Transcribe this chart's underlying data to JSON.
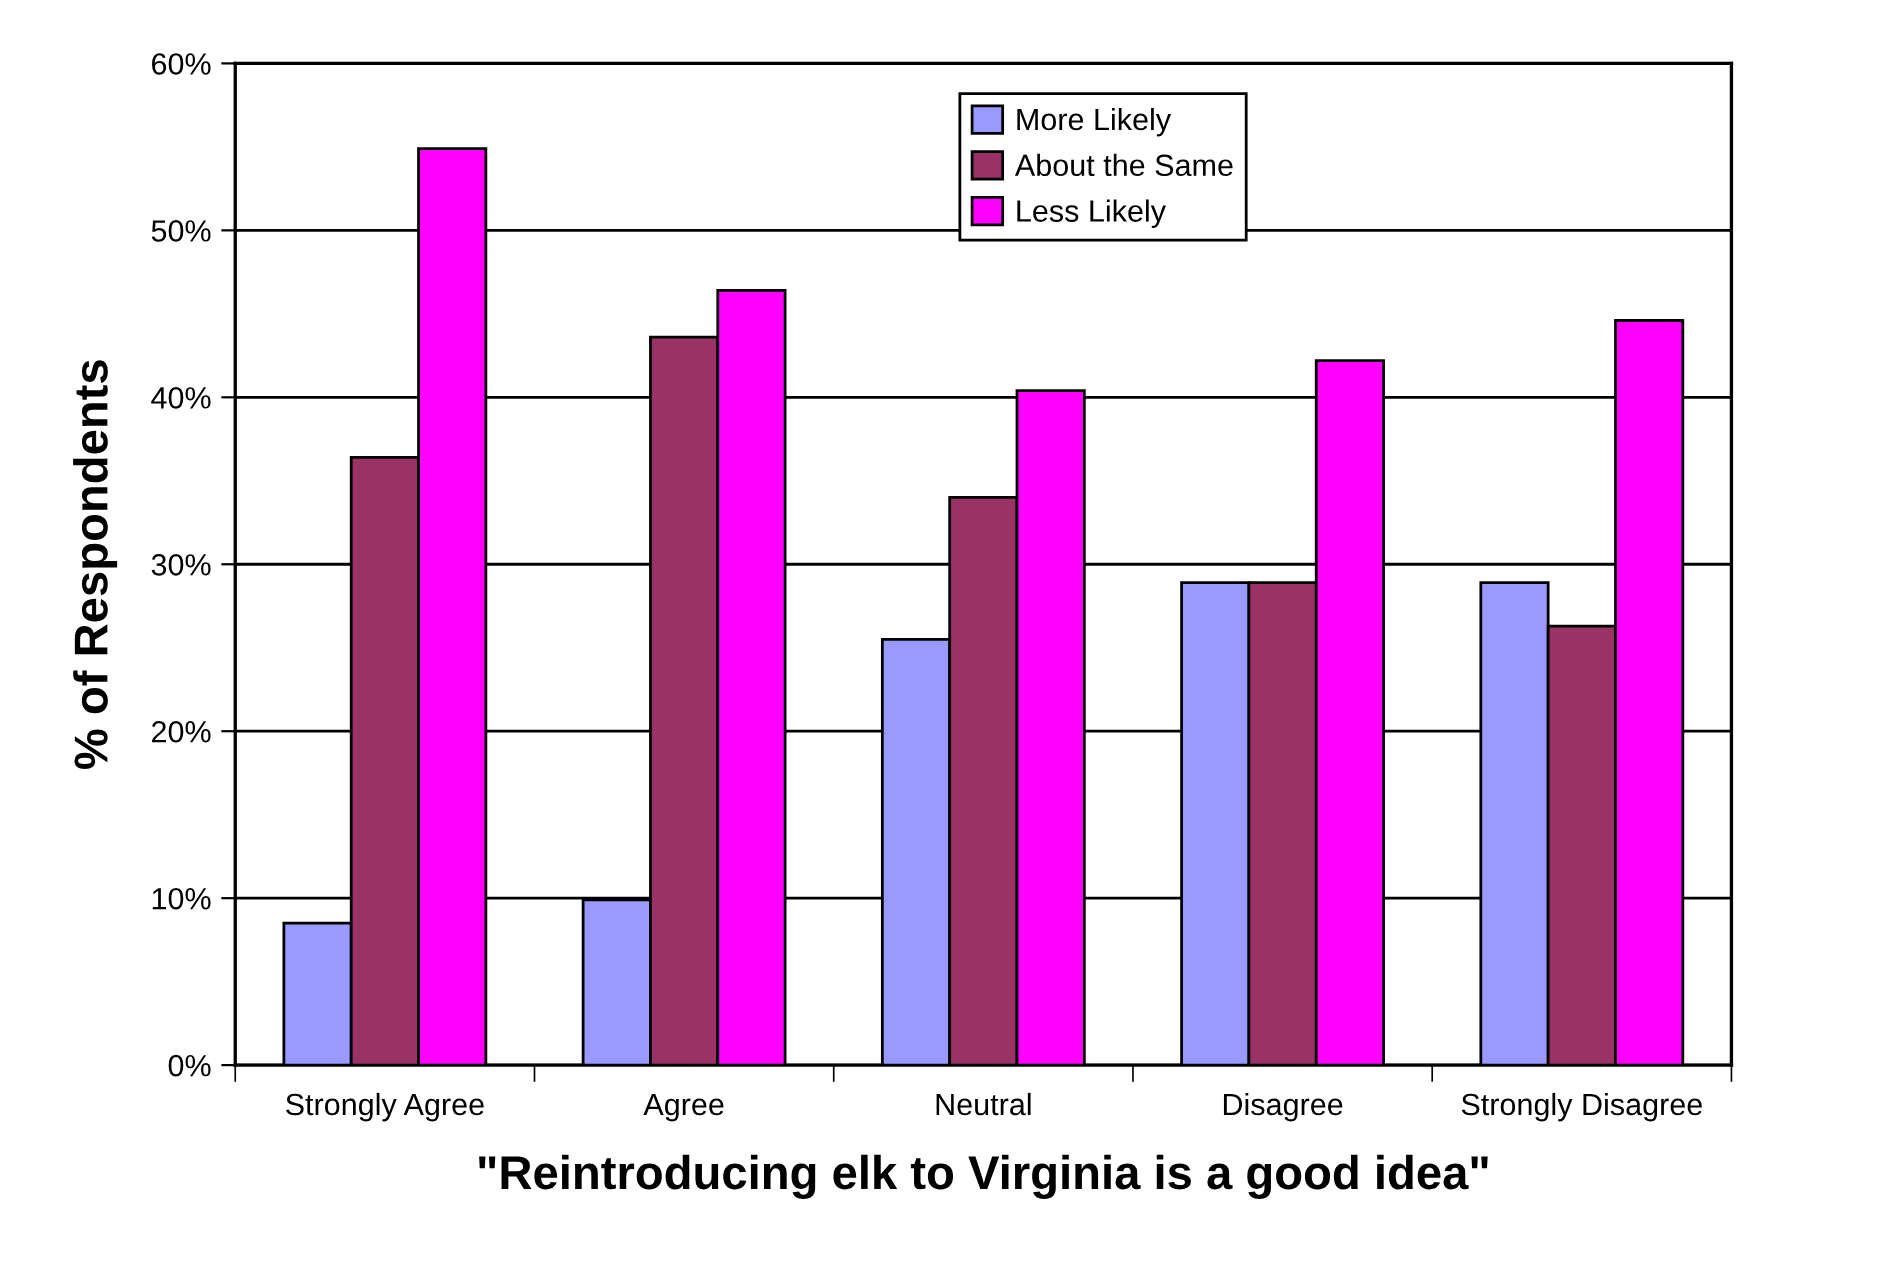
{
  "chart_data": {
    "type": "bar",
    "xlabel": "\"Reintroducing elk to Virginia is a good idea\"",
    "ylabel": "% of Respondents",
    "categories": [
      "Strongly Agree",
      "Agree",
      "Neutral",
      "Disagree",
      "Strongly Disagree"
    ],
    "series": [
      {
        "name": "More Likely",
        "color": "#9999ff",
        "values": [
          8.5,
          9.9,
          25.5,
          28.9,
          28.9
        ]
      },
      {
        "name": "About the Same",
        "color": "#993366",
        "values": [
          36.4,
          43.6,
          34.0,
          28.9,
          26.3
        ]
      },
      {
        "name": "Less Likely",
        "color": "#ff00ff",
        "values": [
          54.9,
          46.4,
          40.4,
          42.2,
          44.6
        ]
      }
    ],
    "ylim": [
      0,
      60
    ],
    "yticks": [
      {
        "value": 0,
        "label": "0%"
      },
      {
        "value": 10,
        "label": "10%"
      },
      {
        "value": 20,
        "label": "20%"
      },
      {
        "value": 30,
        "label": "30%"
      },
      {
        "value": 40,
        "label": "40%"
      },
      {
        "value": 50,
        "label": "50%"
      },
      {
        "value": 60,
        "label": "60%"
      }
    ],
    "grid": "y",
    "legend": "top"
  }
}
